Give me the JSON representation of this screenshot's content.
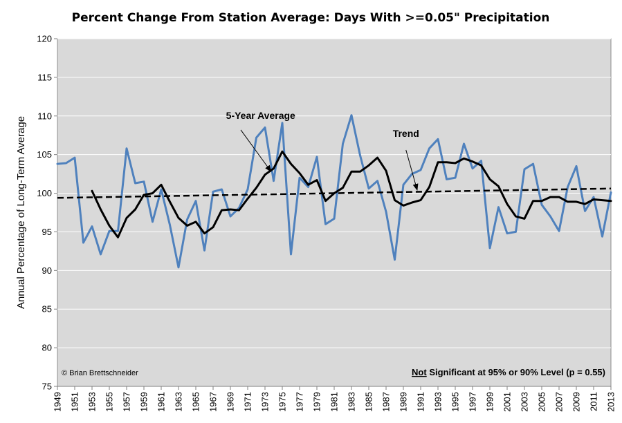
{
  "chart_data": {
    "type": "line",
    "title": "Percent Change From Station Average: Days With >=0.05\" Precipitation",
    "ylabel": "Annual Percentage of Long-Term Average",
    "ylim": [
      75,
      120
    ],
    "yticks": [
      75,
      80,
      85,
      90,
      95,
      100,
      105,
      110,
      115,
      120
    ],
    "xlim": [
      1949,
      2013
    ],
    "xticks": [
      1949,
      1951,
      1953,
      1955,
      1957,
      1959,
      1961,
      1963,
      1965,
      1967,
      1969,
      1971,
      1973,
      1975,
      1977,
      1979,
      1981,
      1983,
      1985,
      1987,
      1989,
      1991,
      1993,
      1995,
      1997,
      1999,
      2001,
      2003,
      2005,
      2007,
      2009,
      2011,
      2013
    ],
    "grid": true,
    "series": [
      {
        "name": "",
        "color": "#4f81bd",
        "style": "solid",
        "x": [
          1949,
          1950,
          1951,
          1952,
          1953,
          1954,
          1955,
          1956,
          1957,
          1958,
          1959,
          1960,
          1961,
          1962,
          1963,
          1964,
          1965,
          1966,
          1967,
          1968,
          1969,
          1970,
          1971,
          1972,
          1973,
          1974,
          1975,
          1976,
          1977,
          1978,
          1979,
          1980,
          1981,
          1982,
          1983,
          1984,
          1985,
          1986,
          1987,
          1988,
          1989,
          1990,
          1991,
          1992,
          1993,
          1994,
          1995,
          1996,
          1997,
          1998,
          1999,
          2000,
          2001,
          2002,
          2003,
          2004,
          2005,
          2006,
          2007,
          2008,
          2009,
          2010,
          2011,
          2012,
          2013
        ],
        "values": [
          103.8,
          103.9,
          104.6,
          93.6,
          95.7,
          92.1,
          95.1,
          95.1,
          105.8,
          101.3,
          101.5,
          96.3,
          100.5,
          95.9,
          90.4,
          96.6,
          99.0,
          92.6,
          100.2,
          100.5,
          97.0,
          98.1,
          100.5,
          107.2,
          108.5,
          101.6,
          109.1,
          92.1,
          102.0,
          100.8,
          104.7,
          96.0,
          96.7,
          106.4,
          110.1,
          104.9,
          100.6,
          101.6,
          97.6,
          91.4,
          101.1,
          102.5,
          103.0,
          105.8,
          107.0,
          101.8,
          102.0,
          106.4,
          103.2,
          104.2,
          92.9,
          98.2,
          94.8,
          95.0,
          103.1,
          103.8,
          98.5,
          97.0,
          95.1,
          100.8,
          103.5,
          97.7,
          99.5,
          94.4,
          100.1
        ]
      },
      {
        "name": "5-Year Average",
        "color": "#000000",
        "style": "solid",
        "x": [
          1953,
          1954,
          1955,
          1956,
          1957,
          1958,
          1959,
          1960,
          1961,
          1962,
          1963,
          1964,
          1965,
          1966,
          1967,
          1968,
          1969,
          1970,
          1971,
          1972,
          1973,
          1974,
          1975,
          1976,
          1977,
          1978,
          1979,
          1980,
          1981,
          1982,
          1983,
          1984,
          1985,
          1986,
          1987,
          1988,
          1989,
          1990,
          1991,
          1992,
          1993,
          1994,
          1995,
          1996,
          1997,
          1998,
          1999,
          2000,
          2001,
          2002,
          2003,
          2004,
          2005,
          2006,
          2007,
          2008,
          2009,
          2010,
          2011,
          2012,
          2013
        ],
        "values": [
          100.3,
          97.9,
          95.8,
          94.3,
          96.8,
          97.9,
          99.8,
          100.0,
          101.1,
          98.9,
          96.8,
          95.8,
          96.3,
          94.8,
          95.6,
          97.8,
          97.9,
          97.8,
          99.3,
          100.7,
          102.4,
          103.2,
          105.4,
          103.8,
          102.6,
          101.1,
          101.7,
          99.0,
          100.0,
          100.7,
          102.8,
          102.8,
          103.6,
          104.6,
          102.9,
          99.1,
          98.4,
          98.8,
          99.1,
          100.8,
          104.0,
          104.0,
          103.9,
          104.5,
          104.1,
          103.6,
          101.8,
          100.9,
          98.6,
          97.0,
          96.7,
          99.0,
          99.0,
          99.5,
          99.5,
          98.9,
          98.9,
          98.6,
          99.2,
          99.1,
          99.0
        ]
      },
      {
        "name": "Trend",
        "color": "#000000",
        "style": "dashed",
        "x": [
          1949,
          2013
        ],
        "values": [
          99.4,
          100.6
        ]
      }
    ],
    "annotations": [
      {
        "text": "5-Year Average",
        "label_x": 1972.5,
        "label_y": 109.6,
        "arrow_from": [
          1970.2,
          108.2
        ],
        "arrow_to": [
          1973.7,
          102.8
        ]
      },
      {
        "text": "Trend",
        "label_x": 1989.3,
        "label_y": 107.3,
        "arrow_from": [
          1989.3,
          105.6
        ],
        "arrow_to": [
          1990.6,
          100.4
        ]
      }
    ],
    "credit": "© Brian Brettschneider",
    "significance": {
      "underlined": "Not",
      "rest": " Significant  at 95% or 90% Level (p = 0.55)"
    },
    "colors": {
      "plot_bg": "#d9d9d9",
      "grid": "#ffffff"
    }
  }
}
